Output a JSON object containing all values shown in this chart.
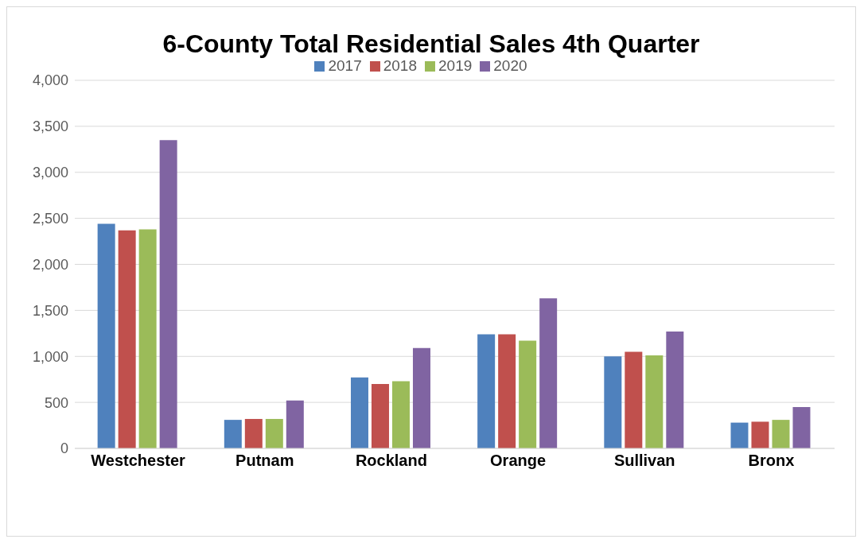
{
  "chart_data": {
    "type": "bar",
    "title": "6-County Total Residential Sales 4th Quarter",
    "categories": [
      "Westchester",
      "Putnam",
      "Rockland",
      "Orange",
      "Sullivan",
      "Bronx"
    ],
    "series": [
      {
        "name": "2017",
        "color": "#4f81bd",
        "values": [
          2440,
          310,
          770,
          1240,
          1000,
          280
        ]
      },
      {
        "name": "2018",
        "color": "#c0504d",
        "values": [
          2370,
          320,
          700,
          1240,
          1050,
          290
        ]
      },
      {
        "name": "2019",
        "color": "#9bbb59",
        "values": [
          2380,
          320,
          730,
          1170,
          1010,
          310
        ]
      },
      {
        "name": "2020",
        "color": "#8064a2",
        "values": [
          3350,
          520,
          1090,
          1630,
          1270,
          450
        ]
      }
    ],
    "ylim": [
      0,
      4000
    ],
    "yticks": [
      0,
      500,
      {
        "value": 1000,
        "label": "1,000"
      },
      {
        "value": 1500,
        "label": "1,500"
      },
      {
        "value": 2000,
        "label": "2,000"
      },
      {
        "value": 2500,
        "label": "2,500"
      },
      {
        "value": 3000,
        "label": "3,000"
      },
      {
        "value": 3500,
        "label": "3,500"
      },
      {
        "value": 4000,
        "label": "4,000"
      }
    ],
    "grid": "y",
    "legend": "top"
  }
}
